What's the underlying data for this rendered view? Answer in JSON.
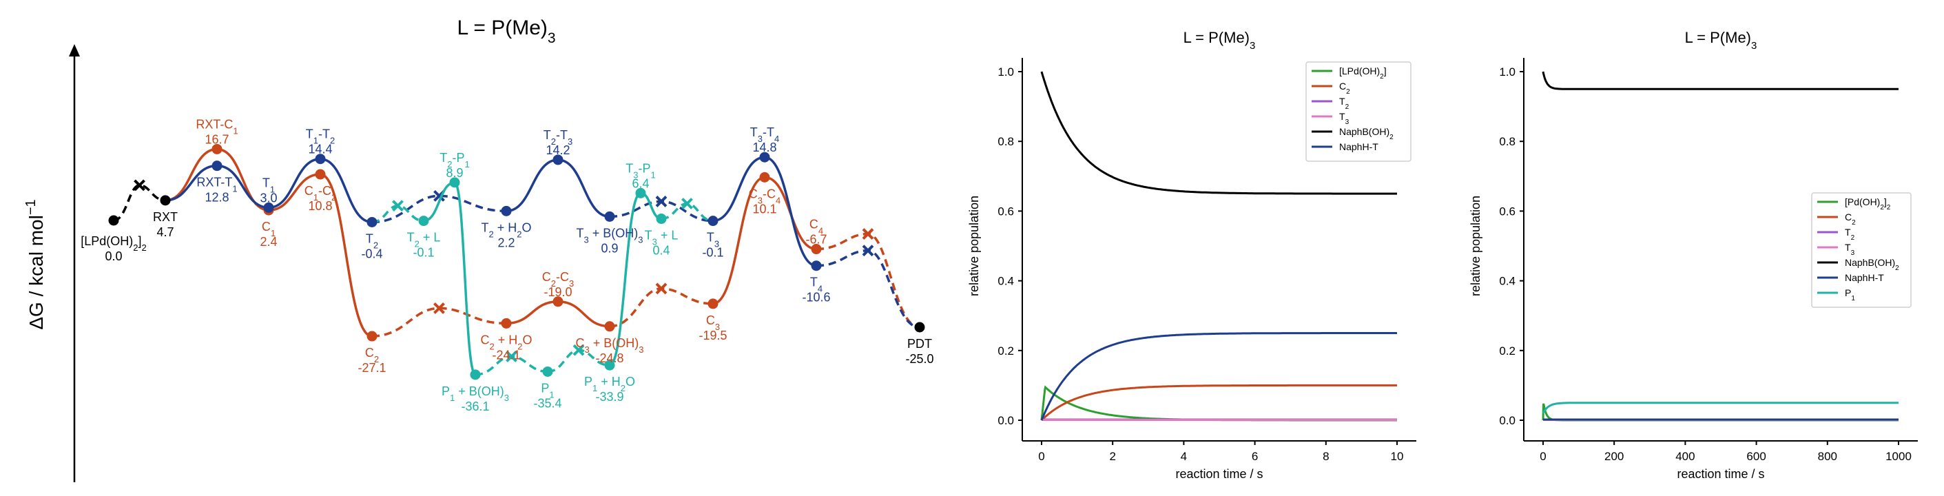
{
  "colors": {
    "orange": "#c8461a",
    "blue": "#1f3d8f",
    "teal": "#1fb3a8",
    "black": "#000000",
    "green": "#2ca02c",
    "purple": "#9a55d4",
    "pink": "#e377c2"
  },
  "chart_data": [
    {
      "type": "line",
      "title": "L = P(Me)3",
      "ylabel": "ΔG / kcal mol−1",
      "states": [
        {
          "id": "LPd",
          "label": "[LPd(OH)2]2",
          "value": "0.0",
          "x": 0,
          "g": 0.0,
          "color": "black"
        },
        {
          "id": "RXT",
          "label": "RXT",
          "value": "4.7",
          "x": 1,
          "g": 4.7,
          "color": "black"
        },
        {
          "id": "RXTC1",
          "label": "RXT-C1",
          "value": "16.7",
          "x": 2,
          "g": 16.7,
          "color": "orange"
        },
        {
          "id": "RXTT1",
          "label": "RXT-T1",
          "value": "12.8",
          "x": 2,
          "g": 12.8,
          "color": "blue"
        },
        {
          "id": "C1",
          "label": "C1",
          "value": "2.4",
          "x": 3,
          "g": 2.4,
          "color": "orange"
        },
        {
          "id": "T1",
          "label": "T1",
          "value": "3.0",
          "x": 3,
          "g": 3.0,
          "color": "blue"
        },
        {
          "id": "T1T2",
          "label": "T1-T2",
          "value": "14.4",
          "x": 4,
          "g": 14.4,
          "color": "blue"
        },
        {
          "id": "C1C2",
          "label": "C1-C2",
          "value": "10.8",
          "x": 4,
          "g": 10.8,
          "color": "orange"
        },
        {
          "id": "T2",
          "label": "T2",
          "value": "-0.4",
          "x": 5,
          "g": -0.4,
          "color": "blue"
        },
        {
          "id": "C2",
          "label": "C2",
          "value": "-27.1",
          "x": 5,
          "g": -27.1,
          "color": "orange"
        },
        {
          "id": "T2L",
          "label": "T2 + L",
          "value": "-0.1",
          "x": 6,
          "g": -0.1,
          "color": "teal"
        },
        {
          "id": "T2P1",
          "label": "T2-P1",
          "value": "8.9",
          "x": 6.6,
          "g": 8.9,
          "color": "teal"
        },
        {
          "id": "T2H2O",
          "label": "T2 + H2O",
          "value": "2.2",
          "x": 7.6,
          "g": 2.2,
          "color": "blue"
        },
        {
          "id": "C2H2O",
          "label": "C2 + H2O",
          "value": "-24.1",
          "x": 7.6,
          "g": -24.1,
          "color": "orange"
        },
        {
          "id": "P1BOH3",
          "label": "P1 + B(OH)3",
          "value": "-36.1",
          "x": 7,
          "g": -36.1,
          "color": "teal"
        },
        {
          "id": "P1",
          "label": "P1",
          "value": "-35.4",
          "x": 8.4,
          "g": -35.4,
          "color": "teal"
        },
        {
          "id": "C2C3",
          "label": "C2-C3",
          "value": "-19.0",
          "x": 8.6,
          "g": -19.0,
          "color": "orange"
        },
        {
          "id": "T2T3",
          "label": "T2-T3",
          "value": "14.2",
          "x": 8.6,
          "g": 14.2,
          "color": "blue"
        },
        {
          "id": "P1H2O",
          "label": "P1 + H2O",
          "value": "-33.9",
          "x": 9.6,
          "g": -33.9,
          "color": "teal"
        },
        {
          "id": "T3BOH3",
          "label": "T3 + B(OH)3",
          "value": "0.9",
          "x": 9.6,
          "g": 0.9,
          "color": "blue"
        },
        {
          "id": "C3BOH3",
          "label": "C3 + B(OH)3",
          "value": "-24.8",
          "x": 9.6,
          "g": -24.8,
          "color": "orange"
        },
        {
          "id": "T3P1",
          "label": "T3-P1",
          "value": "6.4",
          "x": 10.2,
          "g": 6.4,
          "color": "teal"
        },
        {
          "id": "T3L",
          "label": "T3 + L",
          "value": "0.4",
          "x": 10.6,
          "g": 0.4,
          "color": "teal"
        },
        {
          "id": "T3",
          "label": "T3",
          "value": "-0.1",
          "x": 11.6,
          "g": -0.1,
          "color": "blue"
        },
        {
          "id": "C3",
          "label": "C3",
          "value": "-19.5",
          "x": 11.6,
          "g": -19.5,
          "color": "orange"
        },
        {
          "id": "T3T4",
          "label": "T3-T4",
          "value": "14.8",
          "x": 12.6,
          "g": 14.8,
          "color": "blue"
        },
        {
          "id": "C3C4",
          "label": "C3-C4",
          "value": "10.1",
          "x": 12.6,
          "g": 10.1,
          "color": "orange"
        },
        {
          "id": "C4",
          "label": "C4",
          "value": "-6.7",
          "x": 13.6,
          "g": -6.7,
          "color": "orange"
        },
        {
          "id": "T4",
          "label": "T4",
          "value": "-10.6",
          "x": 13.6,
          "g": -10.6,
          "color": "blue"
        },
        {
          "id": "PDT",
          "label": "PDT",
          "value": "-25.0",
          "x": 15.6,
          "g": -25.0,
          "color": "black"
        }
      ]
    },
    {
      "type": "line",
      "title": "L = P(Me)3",
      "xlabel": "reaction time / s",
      "ylabel": "relative population",
      "xlim": [
        0,
        10
      ],
      "ylim": [
        0,
        1.0
      ],
      "xticks": [
        0,
        2,
        4,
        6,
        8,
        10
      ],
      "yticks": [
        0.0,
        0.2,
        0.4,
        0.6,
        0.8,
        1.0
      ],
      "legend": "top-right",
      "series": [
        {
          "name": "[LPd(OH)2]",
          "color": "green",
          "kind": "pulse",
          "peak": 0.095,
          "t_peak": 0.1,
          "tau": 1.0
        },
        {
          "name": "C2",
          "color": "orange",
          "kind": "rise",
          "start": 0,
          "final": 0.1,
          "tau": 1.0
        },
        {
          "name": "T2",
          "color": "purple",
          "kind": "flat",
          "value": 0.002
        },
        {
          "name": "T3",
          "color": "pink",
          "kind": "flat",
          "value": 0.001
        },
        {
          "name": "NaphB(OH)2",
          "color": "black",
          "kind": "decay",
          "start": 1.0,
          "final": 0.65,
          "tau": 1.0
        },
        {
          "name": "NaphH-T",
          "color": "blue",
          "kind": "rise",
          "start": 0,
          "final": 0.25,
          "tau": 1.0
        }
      ]
    },
    {
      "type": "line",
      "title": "L = P(Me)3",
      "xlabel": "reaction time / s",
      "ylabel": "relative population",
      "xlim": [
        0,
        1000
      ],
      "ylim": [
        0,
        1.0
      ],
      "xticks": [
        0,
        200,
        400,
        600,
        800,
        1000
      ],
      "yticks": [
        0.0,
        0.2,
        0.4,
        0.6,
        0.8,
        1.0
      ],
      "legend": "center-right",
      "series": [
        {
          "name": "[Pd(OH)2]2",
          "color": "green",
          "kind": "pulse",
          "peak": 0.05,
          "t_peak": 1,
          "tau": 8
        },
        {
          "name": "C2",
          "color": "orange",
          "kind": "flat",
          "value": 0.002
        },
        {
          "name": "T2",
          "color": "purple",
          "kind": "flat",
          "value": 0.001
        },
        {
          "name": "T3",
          "color": "pink",
          "kind": "flat",
          "value": 0.001
        },
        {
          "name": "NaphB(OH)2",
          "color": "black",
          "kind": "decay",
          "start": 1.0,
          "final": 0.95,
          "tau": 10
        },
        {
          "name": "NaphH-T",
          "color": "blue",
          "kind": "flat",
          "value": 0.002
        },
        {
          "name": "P1",
          "color": "teal",
          "kind": "rise",
          "start": 0.02,
          "final": 0.05,
          "tau": 15
        }
      ]
    }
  ]
}
